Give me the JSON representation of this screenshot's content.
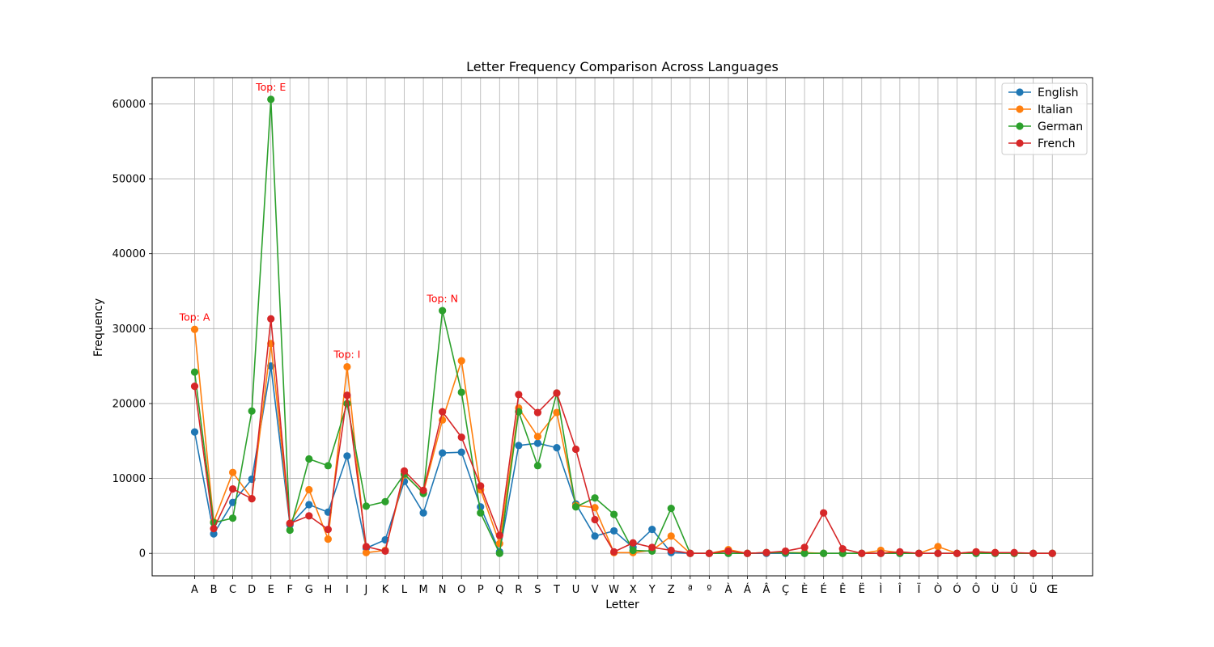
{
  "chart_data": {
    "type": "line",
    "title": "Letter Frequency Comparison Across Languages",
    "xlabel": "Letter",
    "ylabel": "Frequency",
    "ylim": [
      -3000,
      63500
    ],
    "yticks": [
      0,
      10000,
      20000,
      30000,
      40000,
      50000,
      60000
    ],
    "grid": true,
    "legend_position": "top-right",
    "categories": [
      "A",
      "B",
      "C",
      "D",
      "E",
      "F",
      "G",
      "H",
      "I",
      "J",
      "K",
      "L",
      "M",
      "N",
      "O",
      "P",
      "Q",
      "R",
      "S",
      "T",
      "U",
      "V",
      "W",
      "X",
      "Y",
      "Z",
      "ª",
      "º",
      "À",
      "Á",
      "Â",
      "Ç",
      "È",
      "É",
      "Ê",
      "Ë",
      "Ì",
      "Î",
      "Ï",
      "Ò",
      "Ó",
      "Ô",
      "Ù",
      "Û",
      "Ü",
      "Œ"
    ],
    "series": [
      {
        "name": "English",
        "color": "#1f77b4",
        "values": [
          16200,
          2600,
          6800,
          9900,
          25000,
          3800,
          6500,
          5500,
          13000,
          700,
          1800,
          9600,
          5400,
          13400,
          13500,
          6200,
          200,
          14400,
          14700,
          14100,
          6600,
          2300,
          3000,
          800,
          3200,
          100,
          0,
          0,
          0,
          0,
          0,
          0,
          0,
          0,
          0,
          0,
          0,
          0,
          0,
          0,
          0,
          0,
          0,
          0,
          0,
          0
        ]
      },
      {
        "name": "Italian",
        "color": "#ff7f0e",
        "values": [
          29900,
          4200,
          10800,
          7300,
          28000,
          4000,
          8500,
          1900,
          24900,
          100,
          400,
          10500,
          8100,
          17800,
          25700,
          8500,
          1300,
          19400,
          15600,
          18800,
          6400,
          6100,
          100,
          100,
          400,
          2300,
          0,
          0,
          500,
          0,
          100,
          100,
          100,
          0,
          0,
          0,
          400,
          100,
          0,
          900,
          0,
          200,
          100,
          0,
          0,
          0
        ]
      },
      {
        "name": "German",
        "color": "#2ca02c",
        "values": [
          24200,
          4100,
          4700,
          19000,
          60600,
          3100,
          12600,
          11700,
          20000,
          6300,
          6900,
          10600,
          8000,
          32400,
          21500,
          5400,
          0,
          18900,
          11700,
          21400,
          6200,
          7400,
          5200,
          400,
          300,
          6000,
          0,
          0,
          0,
          0,
          100,
          100,
          0,
          0,
          0,
          0,
          0,
          0,
          0,
          0,
          0,
          0,
          0,
          0,
          0,
          0
        ]
      },
      {
        "name": "French",
        "color": "#d62728",
        "values": [
          22300,
          3300,
          8600,
          7300,
          31300,
          4000,
          5000,
          3200,
          21100,
          900,
          300,
          11000,
          8400,
          18900,
          15500,
          9000,
          2400,
          21200,
          18800,
          21400,
          13900,
          4500,
          200,
          1400,
          800,
          400,
          0,
          0,
          300,
          0,
          100,
          300,
          800,
          5400,
          600,
          0,
          0,
          200,
          0,
          0,
          0,
          200,
          100,
          100,
          0,
          0
        ]
      }
    ],
    "annotations": [
      {
        "text": "Top: A",
        "category": "A",
        "y": 31500
      },
      {
        "text": "Top: E",
        "category": "E",
        "y": 62200
      },
      {
        "text": "Top: I",
        "category": "I",
        "y": 26500
      },
      {
        "text": "Top: N",
        "category": "N",
        "y": 34000
      }
    ]
  }
}
